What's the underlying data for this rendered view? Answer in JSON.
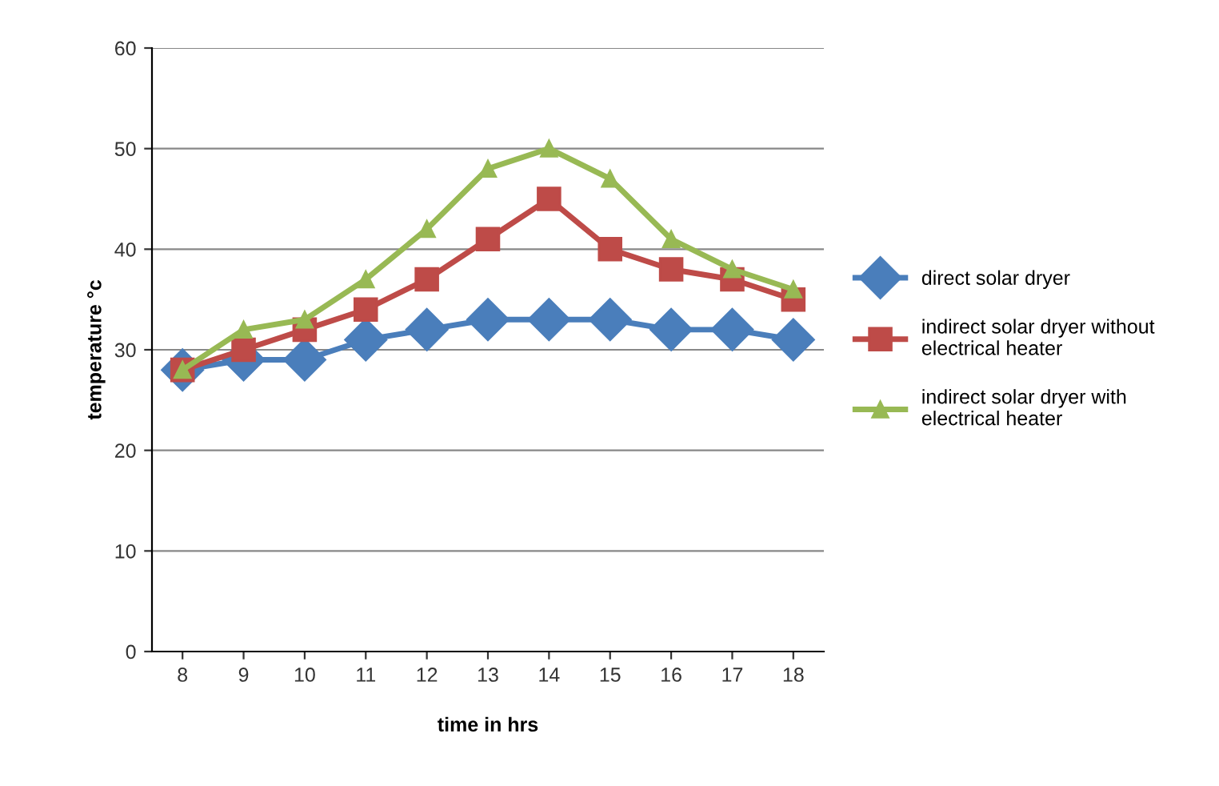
{
  "chart_data": {
    "type": "line",
    "xlabel": "time in hrs",
    "ylabel": "temperature °c",
    "categories": [
      "8",
      "9",
      "10",
      "11",
      "12",
      "13",
      "14",
      "15",
      "16",
      "17",
      "18"
    ],
    "ylim": [
      0,
      60
    ],
    "yticks": [
      0,
      10,
      20,
      30,
      40,
      50,
      60
    ],
    "grid": "y",
    "legend": "right",
    "series": [
      {
        "name": "direct solar dryer",
        "color": "#4a7ebb",
        "marker": "diamond",
        "values": [
          28,
          29,
          29,
          31,
          32,
          33,
          33,
          33,
          32,
          32,
          31
        ]
      },
      {
        "name": "indirect solar dryer without electrical heater",
        "color": "#be4b48",
        "marker": "square",
        "values": [
          28,
          30,
          32,
          34,
          37,
          41,
          45,
          40,
          38,
          37,
          35
        ]
      },
      {
        "name": "indirect solar dryer with electrical heater",
        "color": "#98b954",
        "marker": "triangle",
        "values": [
          28,
          32,
          33,
          37,
          42,
          48,
          50,
          47,
          41,
          38,
          36
        ]
      }
    ]
  }
}
